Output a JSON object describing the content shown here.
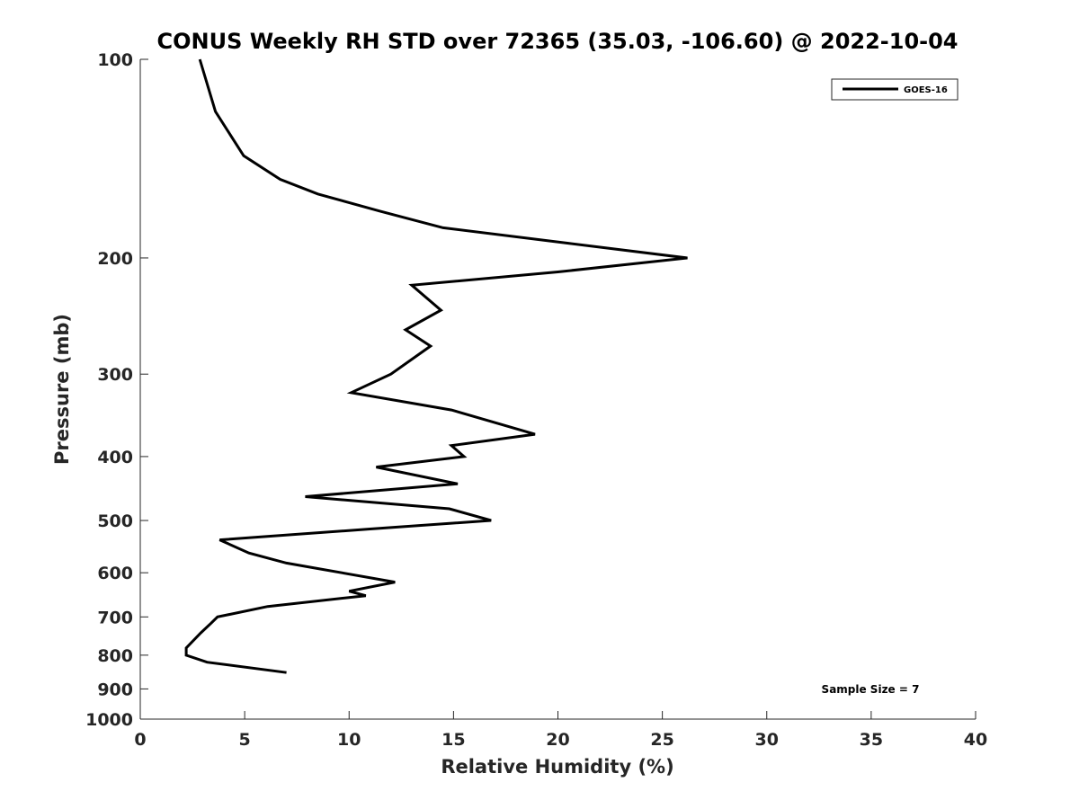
{
  "chart_data": {
    "type": "line",
    "title": "CONUS Weekly RH STD over 72365 (35.03, -106.60) @ 2022-10-04",
    "xlabel": "Relative Humidity (%)",
    "ylabel": "Pressure (mb)",
    "xlim": [
      0,
      40
    ],
    "ylim": [
      100,
      1000
    ],
    "y_scale": "log",
    "y_reversed": true,
    "xticks": [
      0,
      5,
      10,
      15,
      20,
      25,
      30,
      35,
      40
    ],
    "yticks": [
      100,
      200,
      300,
      400,
      500,
      600,
      700,
      800,
      900,
      1000
    ],
    "grid": false,
    "legend_position": "top-right",
    "line_color": "#000000",
    "series": [
      {
        "name": "GOES-16",
        "points": [
          {
            "x": 2.85,
            "y": 100
          },
          {
            "x": 3.6,
            "y": 120
          },
          {
            "x": 4.95,
            "y": 140
          },
          {
            "x": 6.7,
            "y": 152
          },
          {
            "x": 8.5,
            "y": 160
          },
          {
            "x": 11.5,
            "y": 170
          },
          {
            "x": 14.5,
            "y": 180
          },
          {
            "x": 20.5,
            "y": 190
          },
          {
            "x": 26.2,
            "y": 200
          },
          {
            "x": 20.0,
            "y": 210
          },
          {
            "x": 13.0,
            "y": 220
          },
          {
            "x": 14.4,
            "y": 240
          },
          {
            "x": 12.7,
            "y": 257
          },
          {
            "x": 13.9,
            "y": 272
          },
          {
            "x": 12.0,
            "y": 300
          },
          {
            "x": 10.1,
            "y": 320
          },
          {
            "x": 14.9,
            "y": 340
          },
          {
            "x": 18.9,
            "y": 370
          },
          {
            "x": 14.9,
            "y": 385
          },
          {
            "x": 15.5,
            "y": 400
          },
          {
            "x": 11.3,
            "y": 415
          },
          {
            "x": 15.2,
            "y": 440
          },
          {
            "x": 7.9,
            "y": 460
          },
          {
            "x": 14.8,
            "y": 480
          },
          {
            "x": 16.8,
            "y": 500
          },
          {
            "x": 11.0,
            "y": 515
          },
          {
            "x": 3.8,
            "y": 535
          },
          {
            "x": 5.2,
            "y": 560
          },
          {
            "x": 7.0,
            "y": 580
          },
          {
            "x": 12.2,
            "y": 620
          },
          {
            "x": 10.0,
            "y": 640
          },
          {
            "x": 10.8,
            "y": 650
          },
          {
            "x": 6.1,
            "y": 675
          },
          {
            "x": 3.7,
            "y": 700
          },
          {
            "x": 3.4,
            "y": 715
          },
          {
            "x": 2.9,
            "y": 740
          },
          {
            "x": 2.2,
            "y": 780
          },
          {
            "x": 2.2,
            "y": 800
          },
          {
            "x": 3.2,
            "y": 820
          },
          {
            "x": 7.0,
            "y": 850
          }
        ]
      }
    ],
    "annotation": "Sample Size = 7"
  }
}
